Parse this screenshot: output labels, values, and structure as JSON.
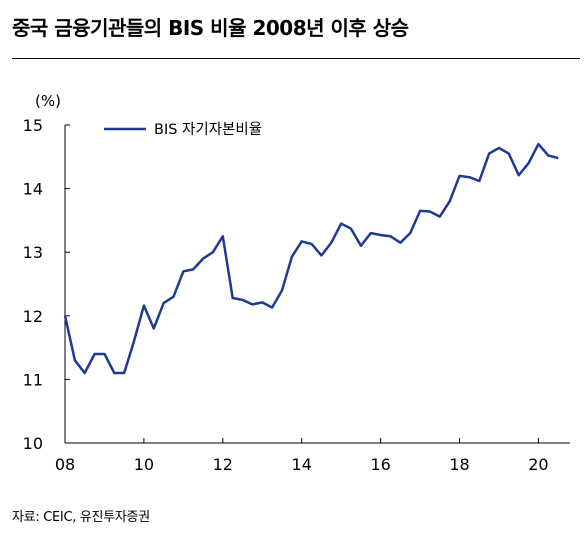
{
  "title": "중국 금융기관들의 BIS 비율 2008년 이후 상승",
  "source": "자료: CEIC, 유진투자증권",
  "chart_data": {
    "type": "line",
    "ylabel": "(%)",
    "ylim": [
      10,
      15
    ],
    "yticks": [
      10,
      11,
      12,
      13,
      14,
      15
    ],
    "xlim": [
      2008,
      2020.8
    ],
    "xticks": [
      {
        "x": 2008,
        "label": "08"
      },
      {
        "x": 2010,
        "label": "10"
      },
      {
        "x": 2012,
        "label": "12"
      },
      {
        "x": 2014,
        "label": "14"
      },
      {
        "x": 2016,
        "label": "16"
      },
      {
        "x": 2018,
        "label": "18"
      },
      {
        "x": 2020,
        "label": "20"
      }
    ],
    "legend_position": "top-left",
    "grid": false,
    "series": [
      {
        "name": "BIS 자기자본비율",
        "color": "#1f3a93",
        "x": [
          2008.0,
          2008.25,
          2008.5,
          2008.75,
          2009.0,
          2009.25,
          2009.5,
          2009.75,
          2010.0,
          2010.25,
          2010.5,
          2010.75,
          2011.0,
          2011.25,
          2011.5,
          2011.75,
          2012.0,
          2012.25,
          2012.5,
          2012.75,
          2013.0,
          2013.25,
          2013.5,
          2013.75,
          2014.0,
          2014.25,
          2014.5,
          2014.75,
          2015.0,
          2015.25,
          2015.5,
          2015.75,
          2016.0,
          2016.25,
          2016.5,
          2016.75,
          2017.0,
          2017.25,
          2017.5,
          2017.75,
          2018.0,
          2018.25,
          2018.5,
          2018.75,
          2019.0,
          2019.25,
          2019.5,
          2019.75,
          2020.0,
          2020.25,
          2020.5
        ],
        "y": [
          12.0,
          11.3,
          11.1,
          11.4,
          11.4,
          11.1,
          11.1,
          11.6,
          12.16,
          11.8,
          12.2,
          12.3,
          12.7,
          12.73,
          12.9,
          13.0,
          13.25,
          12.28,
          12.25,
          12.18,
          12.21,
          12.13,
          12.4,
          12.93,
          13.17,
          13.13,
          12.95,
          13.15,
          13.45,
          13.37,
          13.1,
          13.3,
          13.27,
          13.25,
          13.15,
          13.3,
          13.65,
          13.64,
          13.56,
          13.8,
          14.2,
          14.18,
          14.12,
          14.55,
          14.64,
          14.55,
          14.21,
          14.4,
          14.7,
          14.52,
          14.48
        ]
      }
    ]
  }
}
